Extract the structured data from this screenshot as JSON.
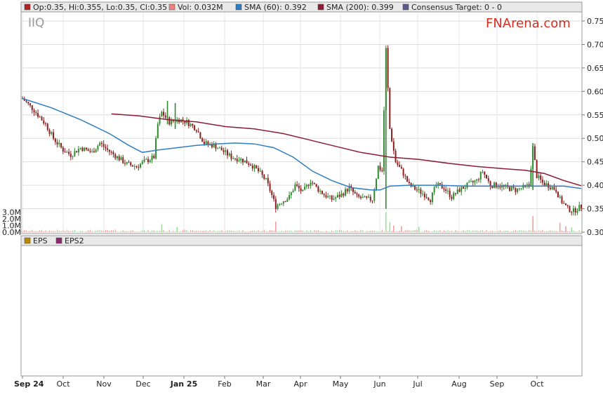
{
  "ticker": "IIQ",
  "brand": "FNArena.com",
  "legend": {
    "ohlc": "Op:0.35, Hi:0.355, Lo:0.35, Cl:0.35",
    "vol": "Vol: 0.032M",
    "sma60": "SMA (60): 0.392",
    "sma200": "SMA (200): 0.399",
    "target": "Consensus Target: 0 - 0"
  },
  "eps_legend": {
    "eps": "EPS",
    "eps2": "EPS2"
  },
  "colors": {
    "up": "#2e8b2e",
    "down": "#8b1e1e",
    "sma60": "#2f7fc0",
    "sma200": "#8b1d34",
    "vol_up": "#9fe09f",
    "vol_down": "#f0a0a0",
    "ohlc_swatch": "#b22222",
    "vol_swatch": "#f08080",
    "sma60_swatch": "#2f7fc0",
    "sma200_swatch": "#8b1d34",
    "target_swatch": "#5a5a8c",
    "eps_swatch": "#b58a00",
    "eps2_swatch": "#8b2a6b",
    "brand": "#d42d1e"
  },
  "chart_data": {
    "type": "candlestick",
    "ylim": [
      0.3,
      0.77
    ],
    "y_ticks": [
      "0.30",
      "0.35",
      "0.40",
      "0.45",
      "0.50",
      "0.55",
      "0.60",
      "0.65",
      "0.70",
      "0.75"
    ],
    "volume_ticks": [
      "0.0M",
      "1.0M",
      "2.0M",
      "3.0M"
    ],
    "volume_max": 3.5,
    "x_labels": [
      {
        "label": "Sep 24",
        "bold": true
      },
      {
        "label": "Oct",
        "bold": false
      },
      {
        "label": "Nov",
        "bold": false
      },
      {
        "label": "Dec",
        "bold": false
      },
      {
        "label": "Jan 25",
        "bold": true
      },
      {
        "label": "Feb",
        "bold": false
      },
      {
        "label": "Mar",
        "bold": false
      },
      {
        "label": "Apr",
        "bold": false
      },
      {
        "label": "May",
        "bold": false
      },
      {
        "label": "Jun",
        "bold": false
      },
      {
        "label": "Jul",
        "bold": false
      },
      {
        "label": "Aug",
        "bold": false
      },
      {
        "label": "Sep",
        "bold": false
      },
      {
        "label": "Oct",
        "bold": false
      }
    ],
    "close_path": [
      [
        0,
        0.585
      ],
      [
        6,
        0.56
      ],
      [
        12,
        0.53
      ],
      [
        16,
        0.5
      ],
      [
        21,
        0.475
      ],
      [
        25,
        0.465
      ],
      [
        30,
        0.48
      ],
      [
        36,
        0.47
      ],
      [
        40,
        0.49
      ],
      [
        44,
        0.475
      ],
      [
        49,
        0.46
      ],
      [
        54,
        0.445
      ],
      [
        59,
        0.44
      ],
      [
        63,
        0.45
      ],
      [
        68,
        0.46
      ],
      [
        70,
        0.53
      ],
      [
        72,
        0.555
      ],
      [
        76,
        0.535
      ],
      [
        81,
        0.54
      ],
      [
        85,
        0.535
      ],
      [
        90,
        0.52
      ],
      [
        94,
        0.49
      ],
      [
        99,
        0.485
      ],
      [
        103,
        0.475
      ],
      [
        108,
        0.46
      ],
      [
        113,
        0.455
      ],
      [
        118,
        0.445
      ],
      [
        122,
        0.43
      ],
      [
        126,
        0.41
      ],
      [
        128,
        0.39
      ],
      [
        131,
        0.355
      ],
      [
        134,
        0.365
      ],
      [
        138,
        0.375
      ],
      [
        141,
        0.4
      ],
      [
        145,
        0.385
      ],
      [
        149,
        0.41
      ],
      [
        152,
        0.395
      ],
      [
        156,
        0.38
      ],
      [
        160,
        0.37
      ],
      [
        165,
        0.38
      ],
      [
        169,
        0.395
      ],
      [
        173,
        0.375
      ],
      [
        178,
        0.37
      ],
      [
        181,
        0.37
      ],
      [
        184,
        0.44
      ],
      [
        186,
        0.43
      ],
      [
        188,
        0.69
      ],
      [
        190,
        0.52
      ],
      [
        193,
        0.45
      ],
      [
        197,
        0.425
      ],
      [
        200,
        0.4
      ],
      [
        204,
        0.39
      ],
      [
        208,
        0.38
      ],
      [
        211,
        0.37
      ],
      [
        214,
        0.4
      ],
      [
        218,
        0.395
      ],
      [
        222,
        0.375
      ],
      [
        226,
        0.39
      ],
      [
        230,
        0.4
      ],
      [
        235,
        0.41
      ],
      [
        238,
        0.43
      ],
      [
        242,
        0.4
      ],
      [
        246,
        0.4
      ],
      [
        250,
        0.395
      ],
      [
        255,
        0.39
      ],
      [
        259,
        0.395
      ],
      [
        262,
        0.4
      ],
      [
        264,
        0.48
      ],
      [
        266,
        0.42
      ],
      [
        269,
        0.405
      ],
      [
        272,
        0.4
      ],
      [
        276,
        0.39
      ],
      [
        278,
        0.37
      ],
      [
        282,
        0.35
      ],
      [
        285,
        0.345
      ],
      [
        289,
        0.355
      ]
    ],
    "spikes": [
      [
        188,
        0.69,
        0.35
      ],
      [
        264,
        0.49,
        0.39
      ],
      [
        75,
        0.58,
        0.53
      ],
      [
        79,
        0.575,
        0.52
      ]
    ],
    "sma60": [
      [
        0,
        0.585
      ],
      [
        15,
        0.565
      ],
      [
        30,
        0.54
      ],
      [
        45,
        0.51
      ],
      [
        55,
        0.485
      ],
      [
        62,
        0.47
      ],
      [
        70,
        0.475
      ],
      [
        80,
        0.48
      ],
      [
        90,
        0.485
      ],
      [
        100,
        0.488
      ],
      [
        110,
        0.49
      ],
      [
        120,
        0.488
      ],
      [
        130,
        0.48
      ],
      [
        140,
        0.46
      ],
      [
        150,
        0.43
      ],
      [
        160,
        0.41
      ],
      [
        170,
        0.395
      ],
      [
        180,
        0.39
      ],
      [
        185,
        0.39
      ],
      [
        190,
        0.398
      ],
      [
        200,
        0.4
      ],
      [
        215,
        0.4
      ],
      [
        230,
        0.398
      ],
      [
        245,
        0.398
      ],
      [
        260,
        0.398
      ],
      [
        270,
        0.398
      ],
      [
        280,
        0.398
      ],
      [
        289,
        0.393
      ]
    ],
    "sma200": [
      [
        46,
        0.552
      ],
      [
        60,
        0.548
      ],
      [
        75,
        0.54
      ],
      [
        90,
        0.535
      ],
      [
        105,
        0.525
      ],
      [
        120,
        0.52
      ],
      [
        135,
        0.51
      ],
      [
        145,
        0.5
      ],
      [
        160,
        0.485
      ],
      [
        175,
        0.47
      ],
      [
        190,
        0.46
      ],
      [
        205,
        0.455
      ],
      [
        220,
        0.447
      ],
      [
        235,
        0.44
      ],
      [
        250,
        0.435
      ],
      [
        260,
        0.432
      ],
      [
        270,
        0.425
      ],
      [
        280,
        0.41
      ],
      [
        289,
        0.399
      ]
    ],
    "volume_spikes": [
      [
        72,
        1.2,
        "up"
      ],
      [
        80,
        0.8,
        "up"
      ],
      [
        131,
        1.6,
        "down"
      ],
      [
        188,
        3.0,
        "up"
      ],
      [
        190,
        1.5,
        "up"
      ],
      [
        192,
        1.0,
        "down"
      ],
      [
        196,
        0.9,
        "down"
      ],
      [
        205,
        0.8,
        "up"
      ],
      [
        264,
        2.4,
        "down"
      ],
      [
        278,
        1.4,
        "down"
      ],
      [
        281,
        0.9,
        "down"
      ],
      [
        284,
        0.7,
        "up"
      ]
    ]
  }
}
